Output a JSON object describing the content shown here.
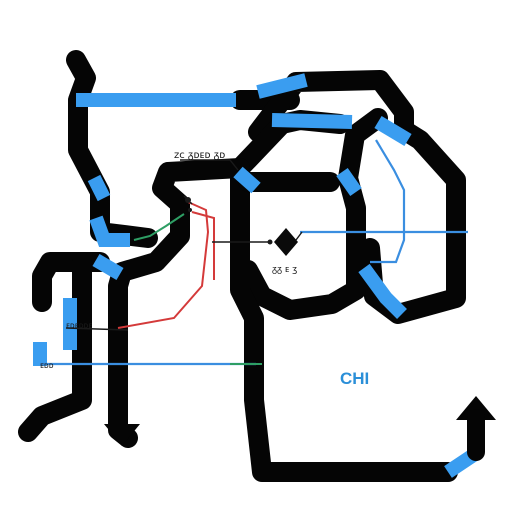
{
  "colors": {
    "background": "#ffffff",
    "trunk": "#050505",
    "accent_blue": "#3a9df0",
    "thin_blue": "#3a8ee0",
    "red": "#d43a3a",
    "green": "#2e9e64",
    "label_blue": "#2b8fd8"
  },
  "labels": {
    "top_cluster": "ᴢᴄ ᵹᴅᴇᴅ ᵹᴅ",
    "center_cluster": "ᵹᵹ ᴇ ʒ",
    "left_cluster": "ᴇᴅᴇᴅᴅᴇ",
    "left_lower": "ᴇᴅᴅ",
    "city": "CHI"
  },
  "icons": {
    "arrow_down": "arrow-down-icon",
    "arrow_up": "arrow-up-icon",
    "diamond": "diamond-marker-icon"
  }
}
